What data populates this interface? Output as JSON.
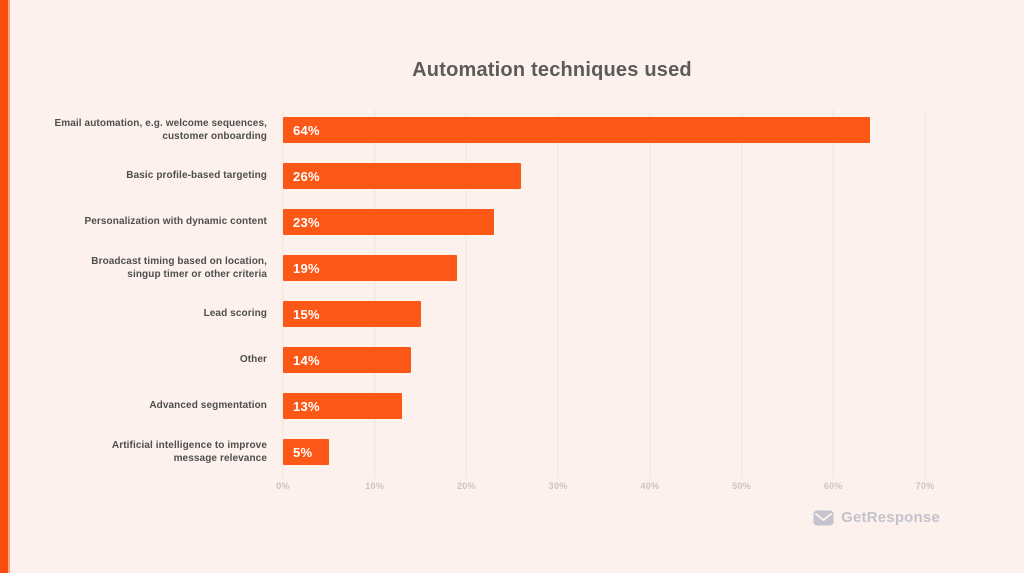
{
  "page": {
    "background_color": "#FCF1EC",
    "accent_stripe_color": "#FA4E0E"
  },
  "chart_data": {
    "type": "bar",
    "orientation": "horizontal",
    "title": "Automation techniques used",
    "categories": [
      "Email automation, e.g. welcome sequences,\ncustomer onboarding",
      "Basic profile-based targeting",
      "Personalization with dynamic content",
      "Broadcast timing based on location,\nsingup timer or other criteria",
      "Lead scoring",
      "Other",
      "Advanced segmentation",
      "Artificial intelligence to improve\nmessage relevance"
    ],
    "values": [
      64,
      26,
      23,
      19,
      15,
      14,
      13,
      5
    ],
    "value_labels": [
      "64%",
      "26%",
      "23%",
      "19%",
      "15%",
      "14%",
      "13%",
      "5%"
    ],
    "xlim": [
      0,
      70
    ],
    "x_ticks": [
      "0%",
      "10%",
      "20%",
      "30%",
      "40%",
      "50%",
      "60%",
      "70%"
    ],
    "bar_color": "#FB5716",
    "grid": true,
    "gridline_color": "#F2E5E0",
    "legend": "none"
  },
  "footer": {
    "brand": "GetResponse",
    "logo_icon": "envelope-icon",
    "brand_color": "#C3C3CD"
  }
}
